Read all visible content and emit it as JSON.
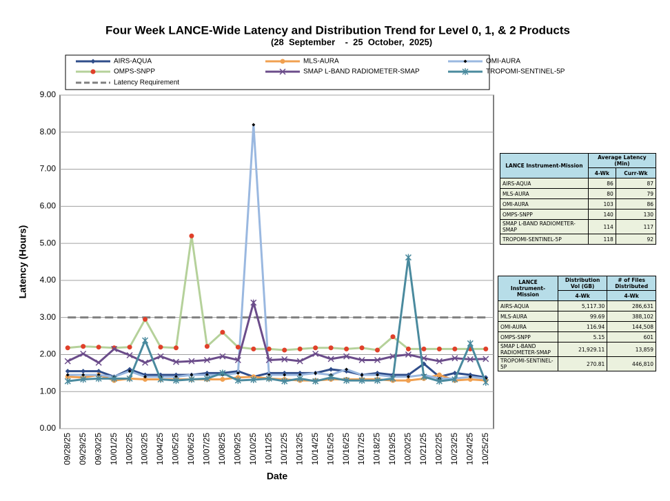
{
  "chart_data": {
    "type": "line",
    "title": "Four Week LANCE-Wide Latency and Distribution Trend for Level 0, 1, & 2 Products",
    "subtitle": "(28  September    -  25  October,  2025)",
    "x_label": "Date",
    "y_label": "Latency (Hours)",
    "categories": [
      "09/28/25",
      "09/29/25",
      "09/30/25",
      "10/01/25",
      "10/02/25",
      "10/03/25",
      "10/04/25",
      "10/05/25",
      "10/06/25",
      "10/07/25",
      "10/08/25",
      "10/09/25",
      "10/10/25",
      "10/11/25",
      "10/12/25",
      "10/13/25",
      "10/14/25",
      "10/15/25",
      "10/16/25",
      "10/17/25",
      "10/18/25",
      "10/19/25",
      "10/20/25",
      "10/21/25",
      "10/22/25",
      "10/23/25",
      "10/24/25",
      "10/25/25"
    ],
    "series": [
      {
        "name": "AIRS-AQUA",
        "color": "#2f4d8a",
        "marker": "diamond",
        "marker_color": "#2f4d8a",
        "values": [
          1.55,
          1.55,
          1.55,
          1.4,
          1.6,
          1.45,
          1.45,
          1.45,
          1.45,
          1.5,
          1.5,
          1.55,
          1.4,
          1.5,
          1.5,
          1.5,
          1.5,
          1.6,
          1.55,
          1.45,
          1.5,
          1.45,
          1.45,
          1.75,
          1.4,
          1.5,
          1.45,
          1.38
        ]
      },
      {
        "name": "MLS-AURA",
        "color": "#f0a050",
        "marker": "circle",
        "marker_color": "#f0a050",
        "values": [
          1.4,
          1.38,
          1.45,
          1.3,
          1.35,
          1.33,
          1.33,
          1.33,
          1.33,
          1.33,
          1.33,
          1.38,
          1.4,
          1.35,
          1.33,
          1.3,
          1.3,
          1.33,
          1.33,
          1.33,
          1.33,
          1.3,
          1.3,
          1.35,
          1.45,
          1.3,
          1.33,
          1.3
        ]
      },
      {
        "name": "OMI-AURA",
        "color": "#9ab8e0",
        "marker": "small-diamond",
        "marker_color": "#000000",
        "values": [
          1.45,
          1.45,
          1.45,
          1.4,
          1.55,
          1.4,
          1.4,
          1.4,
          1.45,
          1.45,
          1.45,
          1.5,
          8.2,
          1.45,
          1.45,
          1.45,
          1.5,
          1.45,
          1.6,
          1.45,
          1.45,
          1.4,
          1.4,
          1.45,
          1.35,
          1.35,
          1.4,
          1.35
        ]
      },
      {
        "name": "OMPS-SNPP",
        "color": "#b5d19a",
        "marker": "circle",
        "marker_color": "#e0402a",
        "values": [
          2.18,
          2.22,
          2.2,
          2.18,
          2.2,
          2.95,
          2.2,
          2.18,
          5.2,
          2.22,
          2.6,
          2.2,
          2.15,
          2.15,
          2.12,
          2.15,
          2.18,
          2.18,
          2.15,
          2.18,
          2.12,
          2.48,
          2.15,
          2.15,
          2.15,
          2.15,
          2.15,
          2.15
        ]
      },
      {
        "name": "SMAP L-BAND RADIOMETER-SMAP",
        "color": "#6b4c8a",
        "marker": "x",
        "marker_color": "#6b4c8a",
        "values": [
          1.82,
          2.02,
          1.78,
          2.15,
          1.98,
          1.78,
          1.95,
          1.8,
          1.82,
          1.85,
          1.95,
          1.85,
          3.4,
          1.85,
          1.87,
          1.82,
          2.02,
          1.88,
          1.95,
          1.85,
          1.85,
          1.95,
          2.0,
          1.9,
          1.82,
          1.9,
          1.87,
          1.88
        ]
      },
      {
        "name": "TROPOMI-SENTINEL-5P",
        "color": "#4a8a9e",
        "marker": "asterisk",
        "marker_color": "#4a8a9e",
        "values": [
          1.28,
          1.33,
          1.35,
          1.35,
          1.35,
          2.38,
          1.33,
          1.3,
          1.33,
          1.35,
          1.5,
          1.3,
          1.32,
          1.35,
          1.28,
          1.35,
          1.28,
          1.38,
          1.3,
          1.3,
          1.3,
          1.35,
          4.62,
          1.4,
          1.28,
          1.33,
          2.3,
          1.25
        ]
      }
    ],
    "threshold": {
      "name": "Latency Requirement",
      "value": 3,
      "color": "#808080"
    },
    "ylim": [
      0,
      9
    ],
    "yticks": [
      {
        "value": 0,
        "label": "0.00"
      },
      {
        "value": 1,
        "label": "1.00"
      },
      {
        "value": 2,
        "label": "2.00"
      },
      {
        "value": 3,
        "label": "3.00"
      },
      {
        "value": 4,
        "label": "4.00"
      },
      {
        "value": 5,
        "label": "5.00"
      },
      {
        "value": 6,
        "label": "6.00"
      },
      {
        "value": 7,
        "label": "7.00"
      },
      {
        "value": 8,
        "label": "8.00"
      },
      {
        "value": 9,
        "label": "9.00"
      }
    ],
    "grid": true
  },
  "tables": [
    {
      "header": [
        "LANCE Instrument-Mission",
        "Average Latency (Min)"
      ],
      "subheader": [
        "4-Wk",
        "Curr-Wk"
      ],
      "rows": [
        [
          "AIRS-AQUA",
          "86",
          "87"
        ],
        [
          "MLS-AURA",
          "80",
          "79"
        ],
        [
          "OMI-AURA",
          "103",
          "86"
        ],
        [
          "OMPS-SNPP",
          "140",
          "130"
        ],
        [
          "SMAP L-BAND RADIOMETER-SMAP",
          "114",
          "117"
        ],
        [
          "TROPOMI-SENTINEL-5P",
          "118",
          "92"
        ]
      ]
    },
    {
      "header": [
        "LANCE Instrument-Mission",
        "Distribution Vol (GB)",
        "# of Files Distributed"
      ],
      "subheader": [
        "4-Wk",
        "4-Wk"
      ],
      "rows": [
        [
          "AIRS-AQUA",
          "5,117.30",
          "286,631"
        ],
        [
          "MLS-AURA",
          "99.69",
          "388,102"
        ],
        [
          "OMI-AURA",
          "116.94",
          "144,508"
        ],
        [
          "OMPS-SNPP",
          "5.15",
          "601"
        ],
        [
          "SMAP L-BAND RADIOMETER-SMAP",
          "21,929.11",
          "13,859"
        ],
        [
          "TROPOMI-SENTINEL-5P",
          "270.81",
          "446,810"
        ]
      ]
    }
  ]
}
